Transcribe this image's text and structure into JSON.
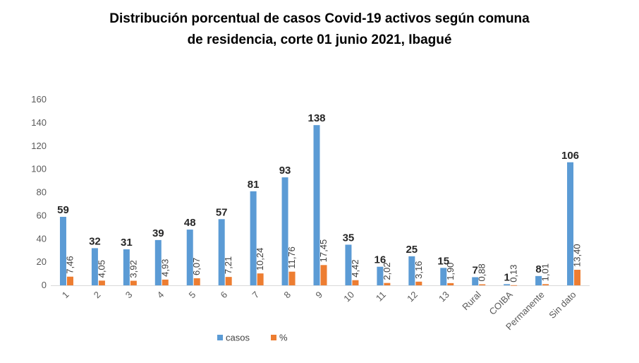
{
  "chart_data": {
    "type": "bar",
    "title_lines": [
      "Distribución porcentual de casos Covid-19 activos según comuna",
      "de residencia, corte 01 junio 2021, Ibagué"
    ],
    "categories": [
      "1",
      "2",
      "3",
      "4",
      "5",
      "6",
      "7",
      "8",
      "9",
      "10",
      "11",
      "12",
      "13",
      "Rural",
      "COIBA",
      "Permanente",
      "Sin dato"
    ],
    "series": [
      {
        "name": "casos",
        "color": "#5B9BD5",
        "values": [
          59,
          32,
          31,
          39,
          48,
          57,
          81,
          93,
          138,
          35,
          16,
          25,
          15,
          7,
          1,
          8,
          106
        ]
      },
      {
        "name": "%",
        "color": "#ED7D31",
        "values": [
          7.46,
          4.05,
          3.92,
          4.93,
          6.07,
          7.21,
          10.24,
          11.76,
          17.45,
          4.42,
          2.02,
          3.16,
          1.9,
          0.88,
          0.13,
          1.01,
          13.4
        ]
      }
    ],
    "casos_labels": [
      "59",
      "32",
      "31",
      "39",
      "48",
      "57",
      "81",
      "93",
      "138",
      "35",
      "16",
      "25",
      "15",
      "7",
      "1",
      "8",
      "106"
    ],
    "pct_labels": [
      "7,46",
      "4,05",
      "3,92",
      "4,93",
      "6,07",
      "7,21",
      "10,24",
      "11,76",
      "17,45",
      "4,42",
      "2,02",
      "3,16",
      "1,90",
      "0,88",
      "0,13",
      "1,01",
      "13,40"
    ],
    "y_ticks": [
      "0",
      "20",
      "40",
      "60",
      "80",
      "100",
      "120",
      "140",
      "160"
    ],
    "ylim": [
      0,
      160
    ],
    "xlabel": "",
    "ylabel": "",
    "grid": false,
    "legend_position": "bottom-left"
  }
}
